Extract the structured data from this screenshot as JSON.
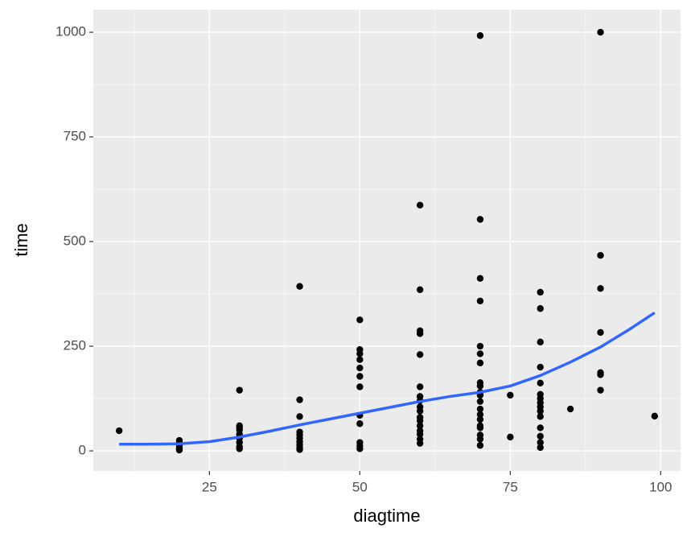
{
  "chart_data": {
    "type": "scatter",
    "x_label": "diagtime",
    "y_label": "time",
    "xlim": [
      5.7,
      103.3
    ],
    "ylim": [
      -48,
      1054
    ],
    "xticks": [
      25,
      50,
      75,
      100
    ],
    "yticks": [
      0,
      250,
      500,
      750,
      1000
    ],
    "grid": true,
    "background": "#ebebeb",
    "grid_color": "#ffffff",
    "series": [
      {
        "type": "scatter",
        "color": "#000000",
        "x": [
          10,
          20,
          20,
          20,
          20,
          20,
          20,
          30,
          30,
          30,
          30,
          30,
          30,
          30,
          30,
          30,
          30,
          40,
          40,
          40,
          40,
          40,
          40,
          40,
          40,
          40,
          40,
          50,
          50,
          50,
          50,
          50,
          50,
          50,
          50,
          50,
          50,
          50,
          50,
          60,
          60,
          60,
          60,
          60,
          60,
          60,
          60,
          60,
          60,
          60,
          60,
          60,
          60,
          60,
          60,
          60,
          70,
          70,
          70,
          70,
          70,
          70,
          70,
          70,
          70,
          70,
          70,
          70,
          70,
          70,
          70,
          70,
          70,
          70,
          70,
          70,
          75,
          75,
          80,
          80,
          80,
          80,
          80,
          80,
          80,
          80,
          80,
          80,
          80,
          80,
          80,
          80,
          80,
          85,
          90,
          90,
          90,
          90,
          90,
          90,
          90,
          99
        ],
        "values": [
          48,
          25,
          20,
          15,
          10,
          5,
          2,
          145,
          60,
          55,
          50,
          40,
          35,
          30,
          20,
          10,
          5,
          393,
          122,
          82,
          45,
          38,
          30,
          22,
          15,
          8,
          3,
          313,
          242,
          232,
          218,
          198,
          178,
          153,
          85,
          65,
          20,
          12,
          5,
          587,
          385,
          287,
          280,
          230,
          153,
          130,
          120,
          105,
          95,
          80,
          72,
          60,
          48,
          40,
          28,
          18,
          992,
          553,
          412,
          358,
          250,
          232,
          210,
          163,
          155,
          140,
          133,
          118,
          100,
          87,
          75,
          60,
          55,
          38,
          28,
          13,
          133,
          33,
          379,
          340,
          260,
          200,
          162,
          135,
          125,
          115,
          105,
          95,
          82,
          55,
          35,
          20,
          8,
          100,
          1000,
          467,
          388,
          283,
          187,
          182,
          145,
          83
        ]
      },
      {
        "type": "line",
        "color": "#3366ff",
        "x": [
          10,
          15,
          20,
          25,
          30,
          35,
          40,
          45,
          50,
          55,
          60,
          65,
          70,
          75,
          80,
          85,
          90,
          95,
          99
        ],
        "values": [
          16,
          16,
          17,
          22,
          33,
          47,
          62,
          76,
          90,
          104,
          118,
          130,
          140,
          155,
          180,
          212,
          248,
          292,
          330
        ]
      }
    ]
  }
}
